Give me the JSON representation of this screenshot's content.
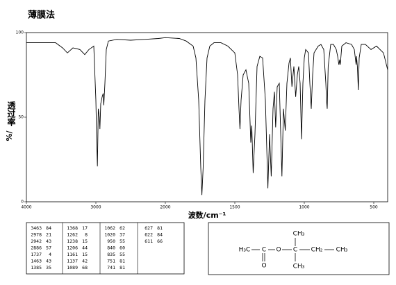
{
  "chart_data": {
    "type": "line",
    "title": "薄膜法",
    "x_label": "波数/cm⁻¹",
    "y_label": "透过率",
    "y_unit": "%/",
    "x_scale": "tick-spaced",
    "xlim": [
      4000,
      400
    ],
    "xticks": [
      4000,
      3000,
      2000,
      1500,
      1000,
      500
    ],
    "ylim": [
      0,
      100
    ],
    "yticks": [
      0,
      50,
      100
    ],
    "color": "#000000",
    "x": [
      4000,
      3780,
      3580,
      3480,
      3410,
      3330,
      3230,
      3160,
      3100,
      3030,
      3000,
      2990,
      2978,
      2965,
      2950,
      2942,
      2930,
      2910,
      2895,
      2886,
      2870,
      2850,
      2820,
      2700,
      2500,
      2300,
      2100,
      2000,
      1900,
      1850,
      1800,
      1780,
      1760,
      1745,
      1737,
      1728,
      1715,
      1700,
      1680,
      1650,
      1600,
      1550,
      1500,
      1480,
      1470,
      1463,
      1455,
      1440,
      1420,
      1400,
      1385,
      1378,
      1368,
      1355,
      1340,
      1320,
      1300,
      1280,
      1262,
      1250,
      1238,
      1225,
      1215,
      1206,
      1195,
      1180,
      1161,
      1150,
      1137,
      1125,
      1110,
      1100,
      1089,
      1075,
      1062,
      1050,
      1040,
      1030,
      1020,
      1010,
      1000,
      990,
      970,
      960,
      950,
      940,
      930,
      900,
      880,
      860,
      845,
      840,
      835,
      828,
      810,
      790,
      770,
      760,
      751,
      745,
      741,
      730,
      700,
      660,
      640,
      627,
      624,
      622,
      618,
      611,
      605,
      590,
      560,
      520,
      480,
      430,
      400
    ],
    "values": [
      94,
      94,
      94,
      91,
      88,
      91,
      90,
      87,
      90,
      92,
      60,
      40,
      21,
      55,
      50,
      43,
      58,
      62,
      64,
      57,
      70,
      90,
      95,
      96,
      95.5,
      96,
      96.5,
      97,
      96.5,
      95,
      92,
      85,
      60,
      20,
      4,
      20,
      60,
      85,
      92,
      94,
      94,
      92,
      88,
      75,
      55,
      43,
      60,
      75,
      78,
      70,
      35,
      45,
      17,
      40,
      80,
      86,
      85,
      60,
      8,
      40,
      15,
      55,
      65,
      44,
      68,
      70,
      15,
      55,
      42,
      70,
      82,
      85,
      68,
      80,
      62,
      75,
      80,
      70,
      37,
      70,
      85,
      90,
      88,
      70,
      55,
      75,
      88,
      92,
      93,
      90,
      70,
      60,
      55,
      80,
      93,
      93,
      90,
      86,
      81,
      84,
      81,
      92,
      94,
      93,
      90,
      81,
      86,
      84,
      80,
      66,
      85,
      93,
      93,
      90,
      92,
      88,
      78
    ],
    "peak_table": {
      "wavenumbers": [
        3463,
        2978,
        2942,
        2886,
        1737,
        1463,
        1385,
        1368,
        1262,
        1238,
        1206,
        1161,
        1137,
        1089,
        1062,
        1020,
        950,
        840,
        835,
        751,
        741,
        627,
        622,
        611
      ],
      "transmittance": [
        84,
        21,
        43,
        57,
        4,
        43,
        35,
        17,
        8,
        15,
        44,
        15,
        42,
        68,
        62,
        37,
        55,
        60,
        55,
        81,
        81,
        81,
        84,
        66
      ]
    },
    "structure": {
      "atoms": [
        "H₃C",
        "C",
        "O",
        "O",
        "C",
        "CH₃",
        "CH₃",
        "CH₂",
        "CH₃"
      ]
    }
  }
}
